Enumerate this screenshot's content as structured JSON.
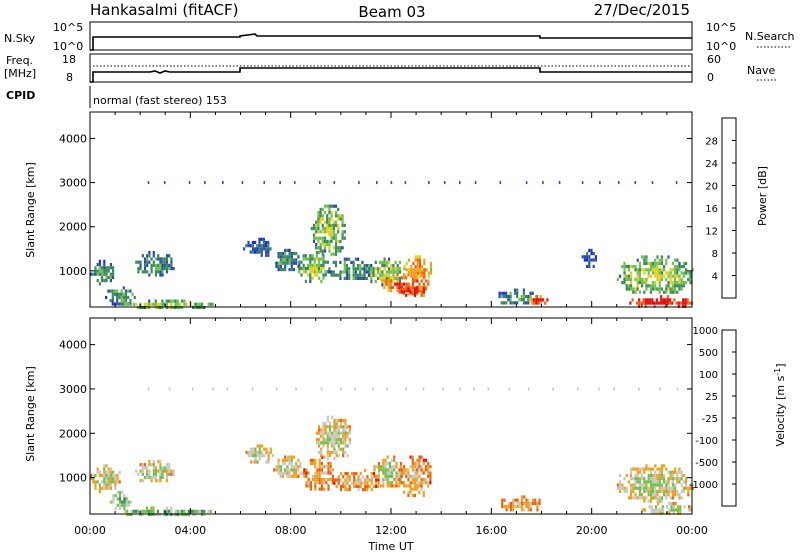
{
  "header": {
    "station": "Hankasalmi (fitACF)",
    "beam": "Beam 03",
    "date": "27/Dec/2015"
  },
  "strip_panels": {
    "nsky": {
      "left_label": "N.Sky",
      "right_label": "N.Search",
      "left_ticks": [
        "10^5",
        "10^0"
      ],
      "right_ticks": [
        "10^5",
        "10^0"
      ]
    },
    "freq": {
      "left_label_line1": "Freq.",
      "left_label_line2": "[MHz]",
      "right_label": "Nave",
      "left_ticks": [
        "18",
        "8"
      ],
      "right_ticks": [
        "60",
        "0"
      ]
    },
    "cpid": {
      "label": "CPID",
      "text": "normal (fast stereo) 153"
    }
  },
  "colors": {
    "power": [
      "#1c2be0",
      "#2e4fa8",
      "#3a8a5a",
      "#6ec050",
      "#e0d020",
      "#f0a020",
      "#f06010",
      "#e01010"
    ],
    "velocity": [
      "#e01010",
      "#f06010",
      "#f0a020",
      "#c8c8c0",
      "#6ec050",
      "#3a8a5a",
      "#2e4fa8",
      "#1c2be0"
    ]
  },
  "chart_data": [
    {
      "type": "heatmap",
      "panel": "power",
      "ylabel": "Slant Range [km]",
      "xlabel": "Time UT",
      "xlim": [
        0,
        24
      ],
      "ylim": [
        180,
        4600
      ],
      "xticks": [
        "00:00",
        "04:00",
        "08:00",
        "12:00",
        "16:00",
        "20:00",
        "00:00"
      ],
      "yticks": [
        1000,
        2000,
        3000,
        4000
      ],
      "colorbar": {
        "label": "Power [dB]",
        "ticks": [
          "4",
          "8",
          "12",
          "16",
          "20",
          "24",
          "28"
        ],
        "range": [
          0,
          30
        ]
      },
      "regions": [
        {
          "t0": 0.0,
          "t1": 1.0,
          "r0": 700,
          "r1": 1250,
          "level": 2
        },
        {
          "t0": 0.6,
          "t1": 1.8,
          "r0": 250,
          "r1": 650,
          "level": 2
        },
        {
          "t0": 1.8,
          "t1": 3.3,
          "r0": 900,
          "r1": 1450,
          "level": 2
        },
        {
          "t0": 1.0,
          "t1": 5.0,
          "r0": 180,
          "r1": 350,
          "level": 3
        },
        {
          "t0": 6.1,
          "t1": 7.3,
          "r0": 1350,
          "r1": 1750,
          "level": 1
        },
        {
          "t0": 7.3,
          "t1": 8.3,
          "r0": 1000,
          "r1": 1500,
          "level": 2
        },
        {
          "t0": 8.3,
          "t1": 9.5,
          "r0": 750,
          "r1": 1450,
          "level": 3
        },
        {
          "t0": 8.8,
          "t1": 10.2,
          "r0": 1400,
          "r1": 2500,
          "level": 3
        },
        {
          "t0": 9.5,
          "t1": 11.2,
          "r0": 800,
          "r1": 1300,
          "level": 2
        },
        {
          "t0": 11.0,
          "t1": 12.5,
          "r0": 700,
          "r1": 1300,
          "level": 3
        },
        {
          "t0": 11.6,
          "t1": 13.5,
          "r0": 500,
          "r1": 950,
          "level": 6
        },
        {
          "t0": 12.5,
          "t1": 13.6,
          "r0": 850,
          "r1": 1350,
          "level": 5
        },
        {
          "t0": 12.3,
          "t1": 13.4,
          "r0": 450,
          "r1": 700,
          "level": 7
        },
        {
          "t0": 16.2,
          "t1": 17.8,
          "r0": 250,
          "r1": 600,
          "level": 2
        },
        {
          "t0": 17.4,
          "t1": 18.4,
          "r0": 250,
          "r1": 450,
          "level": 6
        },
        {
          "t0": 19.6,
          "t1": 20.2,
          "r0": 1100,
          "r1": 1500,
          "level": 1
        },
        {
          "t0": 21.0,
          "t1": 24.0,
          "r0": 500,
          "r1": 1350,
          "level": 3
        },
        {
          "t0": 21.5,
          "t1": 24.0,
          "r0": 200,
          "r1": 450,
          "level": 7
        }
      ]
    },
    {
      "type": "heatmap",
      "panel": "velocity",
      "ylabel": "Slant Range [km]",
      "xlabel": "Time UT",
      "xlim": [
        0,
        24
      ],
      "ylim": [
        180,
        4600
      ],
      "xticks": [
        "00:00",
        "04:00",
        "08:00",
        "12:00",
        "16:00",
        "20:00",
        "00:00"
      ],
      "yticks": [
        1000,
        2000,
        3000,
        4000
      ],
      "colorbar": {
        "label": "Velocity [m s^-1]",
        "ticks": [
          "-1000",
          "-500",
          "-100",
          "-25",
          "25",
          "100",
          "500",
          "1000"
        ],
        "range": [
          -1300,
          1300
        ]
      },
      "regions": [
        {
          "t0": 0.0,
          "t1": 1.2,
          "r0": 700,
          "r1": 1300,
          "level": 3
        },
        {
          "t0": 0.8,
          "t1": 1.6,
          "r0": 300,
          "r1": 700,
          "level": 4
        },
        {
          "t0": 1.8,
          "t1": 3.3,
          "r0": 900,
          "r1": 1400,
          "level": 3
        },
        {
          "t0": 1.0,
          "t1": 5.0,
          "r0": 180,
          "r1": 350,
          "level": 4
        },
        {
          "t0": 6.2,
          "t1": 7.3,
          "r0": 1350,
          "r1": 1750,
          "level": 3
        },
        {
          "t0": 7.3,
          "t1": 8.5,
          "r0": 1000,
          "r1": 1500,
          "level": 3
        },
        {
          "t0": 8.5,
          "t1": 9.7,
          "r0": 700,
          "r1": 1500,
          "level": 2
        },
        {
          "t0": 9.0,
          "t1": 10.4,
          "r0": 1400,
          "r1": 2400,
          "level": 3
        },
        {
          "t0": 9.7,
          "t1": 11.5,
          "r0": 700,
          "r1": 1200,
          "level": 2
        },
        {
          "t0": 11.3,
          "t1": 12.5,
          "r0": 800,
          "r1": 1500,
          "level": 3
        },
        {
          "t0": 12.3,
          "t1": 13.6,
          "r0": 600,
          "r1": 1500,
          "level": 2
        },
        {
          "t0": 16.3,
          "t1": 18.0,
          "r0": 250,
          "r1": 600,
          "level": 2
        },
        {
          "t0": 21.0,
          "t1": 24.0,
          "r0": 500,
          "r1": 1300,
          "level": 3
        },
        {
          "t0": 22.0,
          "t1": 24.0,
          "r0": 200,
          "r1": 450,
          "level": 3
        }
      ]
    }
  ]
}
